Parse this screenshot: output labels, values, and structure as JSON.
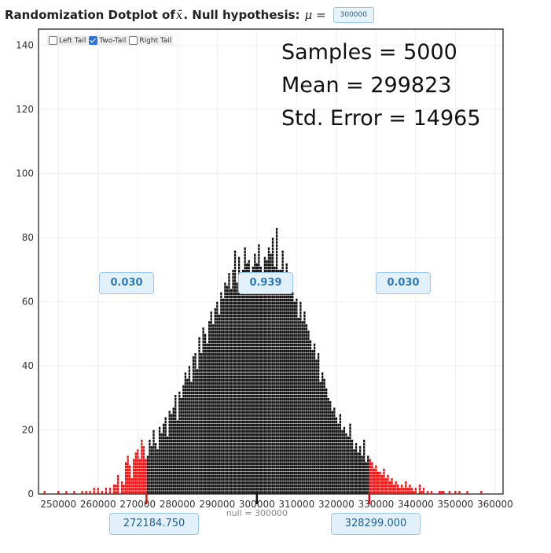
{
  "header": {
    "title_prefix": "Randomization Dotplot of",
    "xbar_symbol": "x̄",
    "title_middle": ". Null hypothesis:",
    "mu_symbol": "μ =",
    "null_value_input": "300000"
  },
  "tail_options": [
    {
      "label": "Left Tail",
      "checked": false
    },
    {
      "label": "Two-Tail",
      "checked": true
    },
    {
      "label": "Right Tail",
      "checked": false
    }
  ],
  "stats": {
    "samples": "Samples = 5000",
    "mean": "Mean = 299823",
    "std_error": "Std. Error = 14965"
  },
  "proportions": {
    "left": "0.030",
    "middle": "0.939",
    "right": "0.030"
  },
  "bounds": {
    "lower": "272184.750",
    "upper": "328299.000"
  },
  "null_label": "null = 300000",
  "colors": {
    "inside": "#111111",
    "tail": "#ee1111",
    "marker": "#dd1111"
  },
  "chart_data": {
    "type": "dotplot",
    "xlim": [
      245000,
      362000
    ],
    "ylim": [
      0,
      145
    ],
    "x_ticks": [
      250000,
      260000,
      270000,
      280000,
      290000,
      300000,
      310000,
      320000,
      330000,
      340000,
      350000,
      360000
    ],
    "y_ticks": [
      0,
      20,
      40,
      60,
      80,
      100,
      120,
      140
    ],
    "lower_cutoff": 272184.75,
    "upper_cutoff": 328299,
    "null_value": 300000,
    "mean": 299823,
    "std_error": 14965,
    "bin_width": 500,
    "bins": [
      [
        246500,
        1
      ],
      [
        250000,
        1
      ],
      [
        252000,
        1
      ],
      [
        254000,
        1
      ],
      [
        256000,
        1
      ],
      [
        257000,
        1
      ],
      [
        258000,
        1
      ],
      [
        259000,
        2
      ],
      [
        260000,
        2
      ],
      [
        261000,
        1
      ],
      [
        262000,
        2
      ],
      [
        263000,
        2
      ],
      [
        264000,
        3
      ],
      [
        264500,
        3
      ],
      [
        265000,
        6
      ],
      [
        266000,
        4
      ],
      [
        266500,
        3
      ],
      [
        267000,
        10
      ],
      [
        267500,
        12
      ],
      [
        268000,
        9
      ],
      [
        268500,
        5
      ],
      [
        269000,
        11
      ],
      [
        269500,
        13
      ],
      [
        270000,
        14
      ],
      [
        270500,
        11
      ],
      [
        271000,
        17
      ],
      [
        271500,
        15
      ],
      [
        272000,
        11
      ],
      [
        272500,
        12
      ],
      [
        273000,
        17
      ],
      [
        273500,
        15
      ],
      [
        274000,
        20
      ],
      [
        274500,
        16
      ],
      [
        275000,
        14
      ],
      [
        275500,
        21
      ],
      [
        276000,
        19
      ],
      [
        276500,
        22
      ],
      [
        277000,
        24
      ],
      [
        277500,
        18
      ],
      [
        278000,
        26
      ],
      [
        278500,
        25
      ],
      [
        279000,
        27
      ],
      [
        279500,
        31
      ],
      [
        280000,
        23
      ],
      [
        280500,
        32
      ],
      [
        281000,
        30
      ],
      [
        281500,
        34
      ],
      [
        282000,
        38
      ],
      [
        282500,
        36
      ],
      [
        283000,
        40
      ],
      [
        283500,
        35
      ],
      [
        284000,
        43
      ],
      [
        284500,
        44
      ],
      [
        285000,
        39
      ],
      [
        285500,
        49
      ],
      [
        286000,
        44
      ],
      [
        286500,
        52
      ],
      [
        287000,
        50
      ],
      [
        287500,
        47
      ],
      [
        288000,
        54
      ],
      [
        288500,
        57
      ],
      [
        289000,
        53
      ],
      [
        289500,
        58
      ],
      [
        290000,
        60
      ],
      [
        290500,
        56
      ],
      [
        291000,
        63
      ],
      [
        291500,
        61
      ],
      [
        292000,
        66
      ],
      [
        292500,
        65
      ],
      [
        293000,
        69
      ],
      [
        293500,
        64
      ],
      [
        294000,
        70
      ],
      [
        294500,
        76
      ],
      [
        295000,
        66
      ],
      [
        295500,
        74
      ],
      [
        296000,
        69
      ],
      [
        296500,
        70
      ],
      [
        297000,
        77
      ],
      [
        297500,
        72
      ],
      [
        298000,
        73
      ],
      [
        298500,
        66
      ],
      [
        299000,
        71
      ],
      [
        299500,
        75
      ],
      [
        300000,
        72
      ],
      [
        300500,
        78
      ],
      [
        301000,
        71
      ],
      [
        301500,
        69
      ],
      [
        302000,
        74
      ],
      [
        302500,
        73
      ],
      [
        303000,
        77
      ],
      [
        303500,
        75
      ],
      [
        304000,
        80
      ],
      [
        304500,
        71
      ],
      [
        305000,
        83
      ],
      [
        305500,
        70
      ],
      [
        306000,
        70
      ],
      [
        306500,
        76
      ],
      [
        307000,
        64
      ],
      [
        307500,
        72
      ],
      [
        308000,
        66
      ],
      [
        308500,
        68
      ],
      [
        309000,
        63
      ],
      [
        309500,
        60
      ],
      [
        310000,
        61
      ],
      [
        310500,
        55
      ],
      [
        311000,
        60
      ],
      [
        311500,
        54
      ],
      [
        312000,
        57
      ],
      [
        312500,
        53
      ],
      [
        313000,
        51
      ],
      [
        313500,
        48
      ],
      [
        314000,
        45
      ],
      [
        314500,
        47
      ],
      [
        315000,
        42
      ],
      [
        315500,
        44
      ],
      [
        316000,
        35
      ],
      [
        316500,
        38
      ],
      [
        317000,
        36
      ],
      [
        317500,
        33
      ],
      [
        318000,
        30
      ],
      [
        318500,
        29
      ],
      [
        319000,
        26
      ],
      [
        319500,
        27
      ],
      [
        320000,
        24
      ],
      [
        320500,
        22
      ],
      [
        321000,
        25
      ],
      [
        321500,
        20
      ],
      [
        322000,
        21
      ],
      [
        322500,
        19
      ],
      [
        323000,
        18
      ],
      [
        323500,
        22
      ],
      [
        324000,
        17
      ],
      [
        324500,
        14
      ],
      [
        325000,
        16
      ],
      [
        325500,
        13
      ],
      [
        326000,
        15
      ],
      [
        326500,
        12
      ],
      [
        327000,
        17
      ],
      [
        327500,
        10
      ],
      [
        328000,
        12
      ],
      [
        328500,
        11
      ],
      [
        329000,
        10
      ],
      [
        329500,
        8
      ],
      [
        330000,
        9
      ],
      [
        330500,
        7
      ],
      [
        331000,
        7
      ],
      [
        331500,
        6
      ],
      [
        332000,
        8
      ],
      [
        332500,
        5
      ],
      [
        333000,
        6
      ],
      [
        333500,
        4
      ],
      [
        334000,
        5
      ],
      [
        334500,
        3
      ],
      [
        335000,
        4
      ],
      [
        335500,
        3
      ],
      [
        336000,
        2
      ],
      [
        336500,
        3
      ],
      [
        337000,
        2
      ],
      [
        337500,
        4
      ],
      [
        338000,
        2
      ],
      [
        338500,
        3
      ],
      [
        339000,
        2
      ],
      [
        339500,
        1
      ],
      [
        340000,
        2
      ],
      [
        341000,
        3
      ],
      [
        341500,
        1
      ],
      [
        342000,
        2
      ],
      [
        343000,
        1
      ],
      [
        344000,
        1
      ],
      [
        346000,
        1
      ],
      [
        346500,
        1
      ],
      [
        347000,
        1
      ],
      [
        348500,
        1
      ],
      [
        350000,
        1
      ],
      [
        351000,
        1
      ],
      [
        353000,
        1
      ],
      [
        356500,
        1
      ]
    ]
  }
}
